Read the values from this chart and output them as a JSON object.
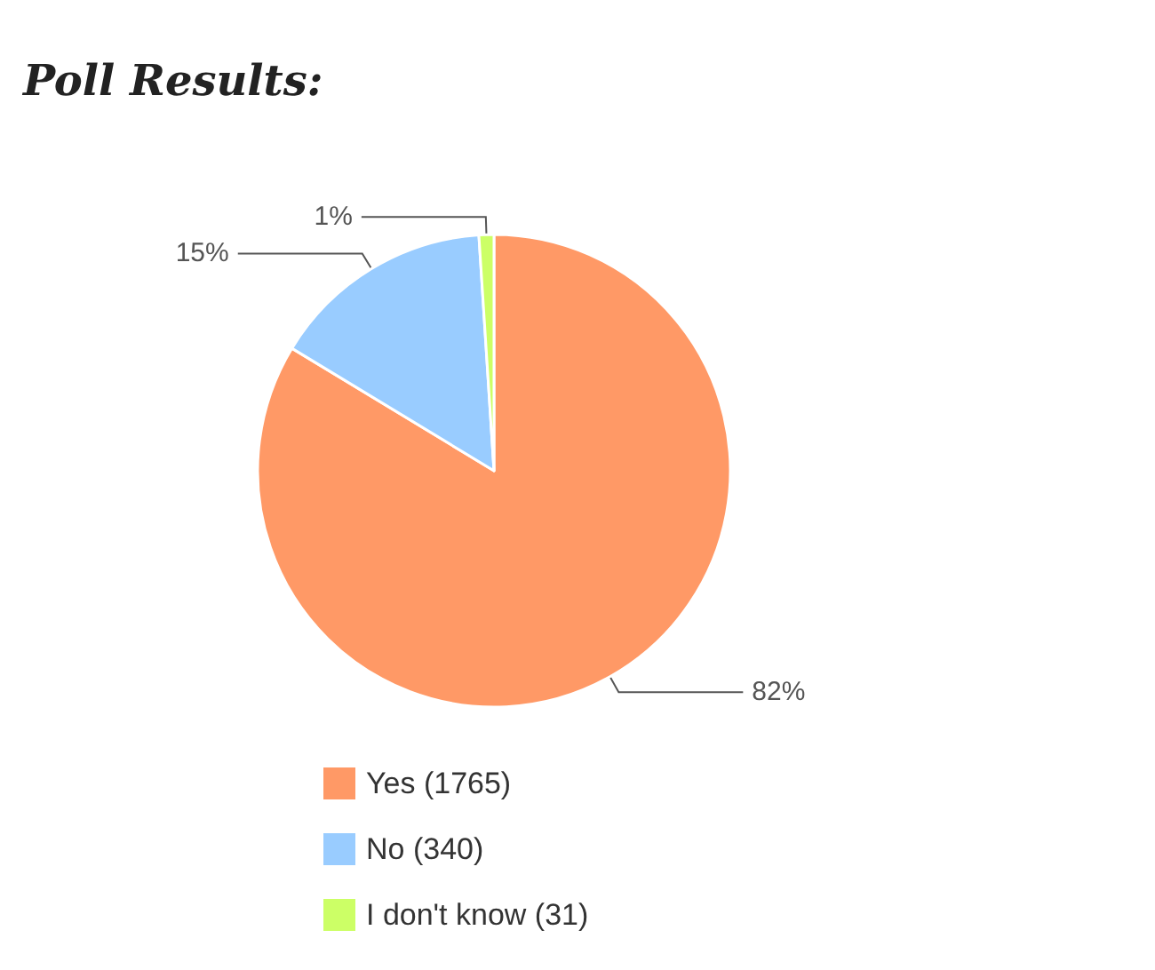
{
  "chart_data": {
    "type": "pie",
    "title": "Poll Results:",
    "categories": [
      "Yes (1765)",
      "No (340)",
      "I don't know (31)"
    ],
    "values": [
      82,
      15,
      1
    ],
    "colors": [
      "#ff9966",
      "#99ccff",
      "#ccff66"
    ],
    "value_labels": [
      "82%",
      "15%",
      "1%"
    ],
    "legend": "bottom"
  }
}
